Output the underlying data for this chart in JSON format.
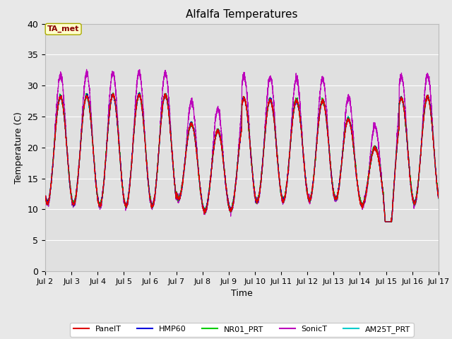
{
  "title": "Alfalfa Temperatures",
  "xlabel": "Time",
  "ylabel": "Temperature (C)",
  "ylim": [
    0,
    40
  ],
  "yticks": [
    0,
    5,
    10,
    15,
    20,
    25,
    30,
    35,
    40
  ],
  "fig_bg_color": "#e8e8e8",
  "axes_bg_color": "#e0e0e0",
  "grid_color": "#ffffff",
  "annotation_text": "TA_met",
  "annotation_bg": "#ffffcc",
  "annotation_border": "#aaaa00",
  "annotation_text_color": "#880000",
  "series_colors": {
    "PanelT": "#dd0000",
    "HMP60": "#0000dd",
    "NR01_PRT": "#00cc00",
    "SonicT": "#bb00bb",
    "AM25T_PRT": "#00cccc"
  },
  "start_day": 2,
  "end_day": 17,
  "xtick_days": [
    2,
    3,
    4,
    5,
    6,
    7,
    8,
    9,
    10,
    11,
    12,
    13,
    14,
    15,
    16,
    17
  ],
  "n_points": 5000,
  "seed": 42
}
